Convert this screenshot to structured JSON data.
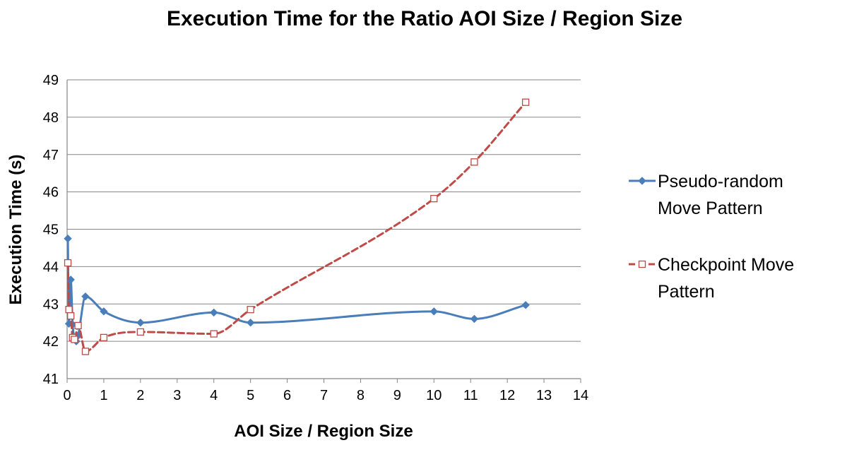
{
  "chart_data": {
    "type": "line",
    "title": "Execution Time for the Ratio AOI Size / Region Size",
    "xlabel": "AOI Size / Region Size",
    "ylabel": "Execution Time (s)",
    "xlim": [
      0,
      14
    ],
    "ylim": [
      41,
      49
    ],
    "x_ticks": [
      0,
      1,
      2,
      3,
      4,
      5,
      6,
      7,
      8,
      9,
      10,
      11,
      12,
      13,
      14
    ],
    "y_ticks": [
      41,
      42,
      43,
      44,
      45,
      46,
      47,
      48,
      49
    ],
    "horizontal_gridlines": true,
    "legend_position": "right",
    "series": [
      {
        "name": "Pseudo-random Move Pattern",
        "legend_lines": [
          "Pseudo-random",
          "Move Pattern"
        ],
        "color": "#4a7ebb",
        "line_style": "solid",
        "marker": "diamond",
        "smooth": true,
        "points": [
          [
            0.02,
            44.75
          ],
          [
            0.05,
            42.47
          ],
          [
            0.1,
            43.65
          ],
          [
            0.15,
            42.45
          ],
          [
            0.2,
            42.1
          ],
          [
            0.25,
            42.0
          ],
          [
            0.3,
            42.15
          ],
          [
            0.5,
            43.2
          ],
          [
            1,
            42.8
          ],
          [
            2,
            42.5
          ],
          [
            4,
            42.77
          ],
          [
            5,
            42.5
          ],
          [
            10,
            42.8
          ],
          [
            11.1,
            42.6
          ],
          [
            12.5,
            42.97
          ]
        ]
      },
      {
        "name": "Checkpoint Move Pattern",
        "legend_lines": [
          "Checkpoint Move",
          "Pattern"
        ],
        "color": "#be4b48",
        "line_style": "dashed",
        "marker": "square-open",
        "smooth": true,
        "points": [
          [
            0.02,
            44.1
          ],
          [
            0.05,
            42.85
          ],
          [
            0.1,
            42.68
          ],
          [
            0.15,
            42.1
          ],
          [
            0.2,
            42.05
          ],
          [
            0.3,
            42.42
          ],
          [
            0.5,
            41.73
          ],
          [
            1,
            42.1
          ],
          [
            2,
            42.25
          ],
          [
            4,
            42.2
          ],
          [
            5,
            42.85
          ],
          [
            10,
            45.82
          ],
          [
            11.1,
            46.8
          ],
          [
            12.5,
            48.4
          ]
        ]
      }
    ]
  }
}
